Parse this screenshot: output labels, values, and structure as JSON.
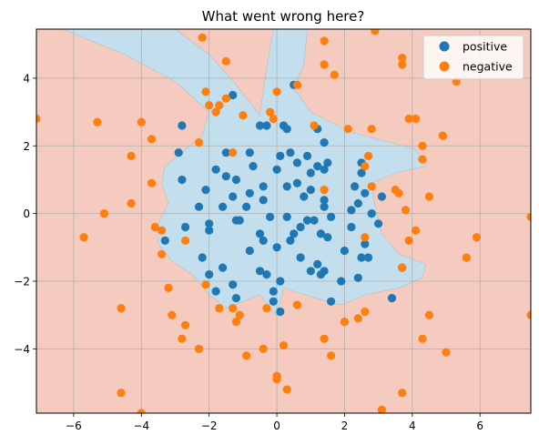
{
  "chart_data": {
    "type": "scatter",
    "title": "What went wrong here?",
    "xlabel": "",
    "ylabel": "",
    "xlim": [
      -7.1,
      7.5
    ],
    "ylim": [
      -5.9,
      5.45
    ],
    "xticks": [
      -6,
      -4,
      -2,
      0,
      2,
      4,
      6
    ],
    "yticks": [
      -4,
      -2,
      0,
      2,
      4
    ],
    "grid": true,
    "legend": {
      "placement": "top-right"
    },
    "background_regions": {
      "negative_region_color": "#f4cbbe",
      "positive_region_color": "#c3dfed",
      "positive_region_outline": [
        [
          -6.3,
          5.45
        ],
        [
          -3.0,
          5.45
        ],
        [
          -2.0,
          4.7
        ],
        [
          -1.2,
          3.8
        ],
        [
          -0.5,
          2.9
        ],
        [
          -0.3,
          4.3
        ],
        [
          -0.1,
          5.45
        ],
        [
          0.9,
          5.45
        ],
        [
          0.8,
          4.4
        ],
        [
          0.5,
          3.7
        ],
        [
          1.0,
          3.0
        ],
        [
          2.2,
          2.4
        ],
        [
          4.1,
          1.9
        ],
        [
          4.4,
          1.4
        ],
        [
          3.5,
          1.2
        ],
        [
          2.8,
          0.9
        ],
        [
          2.9,
          0.2
        ],
        [
          3.1,
          -0.6
        ],
        [
          3.6,
          -1.2
        ],
        [
          4.4,
          -1.5
        ],
        [
          4.3,
          -1.9
        ],
        [
          3.6,
          -2.2
        ],
        [
          2.6,
          -2.4
        ],
        [
          1.9,
          -2.7
        ],
        [
          1.5,
          -2.6
        ],
        [
          0.5,
          -2.3
        ],
        [
          0.2,
          -2.2
        ],
        [
          0.0,
          -3.0
        ],
        [
          -0.2,
          -2.8
        ],
        [
          -0.5,
          -2.4
        ],
        [
          -1.0,
          -2.6
        ],
        [
          -1.5,
          -2.8
        ],
        [
          -2.0,
          -2.4
        ],
        [
          -2.5,
          -1.8
        ],
        [
          -3.1,
          -1.4
        ],
        [
          -3.5,
          -0.9
        ],
        [
          -3.5,
          -0.3
        ],
        [
          -3.2,
          0.3
        ],
        [
          -3.4,
          0.9
        ],
        [
          -3.3,
          1.4
        ],
        [
          -2.8,
          1.8
        ],
        [
          -2.2,
          2.3
        ],
        [
          -2.0,
          3.0
        ],
        [
          -3.0,
          3.9
        ],
        [
          -4.5,
          4.7
        ]
      ]
    },
    "series": [
      {
        "name": "positive",
        "color": "#1f77b4",
        "points": [
          [
            -1.3,
            3.5
          ],
          [
            0.5,
            3.8
          ],
          [
            -2.8,
            2.6
          ],
          [
            -0.5,
            2.6
          ],
          [
            -0.3,
            2.6
          ],
          [
            0.2,
            2.6
          ],
          [
            0.3,
            2.5
          ],
          [
            1.2,
            2.5
          ],
          [
            1.4,
            2.1
          ],
          [
            -2.9,
            1.8
          ],
          [
            -1.5,
            1.8
          ],
          [
            -0.8,
            1.8
          ],
          [
            0.1,
            1.7
          ],
          [
            0.4,
            1.8
          ],
          [
            0.9,
            1.7
          ],
          [
            1.2,
            1.4
          ],
          [
            1.5,
            1.5
          ],
          [
            -1.8,
            1.3
          ],
          [
            -0.7,
            1.4
          ],
          [
            0.0,
            1.3
          ],
          [
            0.6,
            1.5
          ],
          [
            1.0,
            1.2
          ],
          [
            1.4,
            1.3
          ],
          [
            2.5,
            1.5
          ],
          [
            2.5,
            1.2
          ],
          [
            -2.8,
            1.0
          ],
          [
            -1.5,
            1.1
          ],
          [
            -1.2,
            1.0
          ],
          [
            -0.4,
            0.8
          ],
          [
            0.3,
            0.8
          ],
          [
            0.6,
            0.9
          ],
          [
            1.0,
            0.7
          ],
          [
            2.3,
            0.8
          ],
          [
            2.6,
            0.6
          ],
          [
            3.1,
            0.5
          ],
          [
            -2.1,
            0.7
          ],
          [
            -1.3,
            0.5
          ],
          [
            -0.8,
            0.6
          ],
          [
            0.8,
            0.5
          ],
          [
            1.4,
            0.4
          ],
          [
            -0.4,
            0.4
          ],
          [
            2.4,
            0.3
          ],
          [
            -2.3,
            0.2
          ],
          [
            -1.6,
            0.2
          ],
          [
            -0.9,
            0.2
          ],
          [
            1.4,
            0.2
          ],
          [
            2.2,
            0.1
          ],
          [
            2.8,
            0.0
          ],
          [
            -2.7,
            -0.4
          ],
          [
            -2.0,
            -0.3
          ],
          [
            -1.2,
            -0.2
          ],
          [
            -0.2,
            -0.1
          ],
          [
            0.3,
            -0.1
          ],
          [
            0.9,
            -0.2
          ],
          [
            1.1,
            -0.2
          ],
          [
            1.6,
            -0.1
          ],
          [
            3.0,
            -0.3
          ],
          [
            -1.1,
            -0.2
          ],
          [
            0.7,
            -0.4
          ],
          [
            1.3,
            -0.6
          ],
          [
            2.2,
            -0.4
          ],
          [
            -3.3,
            -0.8
          ],
          [
            -2.0,
            -0.5
          ],
          [
            -0.5,
            -0.6
          ],
          [
            0.5,
            -0.6
          ],
          [
            1.5,
            -0.7
          ],
          [
            0.4,
            -0.8
          ],
          [
            -0.4,
            -0.8
          ],
          [
            2.6,
            -0.9
          ],
          [
            -2.2,
            -1.3
          ],
          [
            -0.8,
            -1.1
          ],
          [
            0.0,
            -1.0
          ],
          [
            2.0,
            -1.1
          ],
          [
            2.5,
            -1.3
          ],
          [
            2.7,
            -1.3
          ],
          [
            0.7,
            -1.3
          ],
          [
            1.2,
            -1.5
          ],
          [
            3.7,
            -1.6
          ],
          [
            -1.6,
            -1.6
          ],
          [
            -2.0,
            -1.8
          ],
          [
            -0.5,
            -1.7
          ],
          [
            -0.3,
            -1.8
          ],
          [
            1.0,
            -1.7
          ],
          [
            1.3,
            -1.8
          ],
          [
            1.4,
            -1.7
          ],
          [
            2.4,
            -1.9
          ],
          [
            -1.3,
            -2.1
          ],
          [
            0.1,
            -2.0
          ],
          [
            1.9,
            -2.0
          ],
          [
            -1.8,
            -2.3
          ],
          [
            -0.1,
            -2.3
          ],
          [
            -1.2,
            -2.5
          ],
          [
            -0.1,
            -2.6
          ],
          [
            1.6,
            -2.6
          ],
          [
            3.4,
            -2.5
          ],
          [
            0.1,
            -2.9
          ]
        ]
      },
      {
        "name": "negative",
        "color": "#ff7f0e",
        "points": [
          [
            -2.2,
            5.2
          ],
          [
            1.4,
            5.1
          ],
          [
            2.9,
            5.4
          ],
          [
            -1.5,
            4.5
          ],
          [
            1.4,
            4.4
          ],
          [
            1.7,
            4.1
          ],
          [
            3.7,
            4.6
          ],
          [
            3.7,
            4.4
          ],
          [
            5.3,
            3.9
          ],
          [
            0.6,
            3.8
          ],
          [
            0.0,
            3.6
          ],
          [
            -2.1,
            3.6
          ],
          [
            -1.5,
            3.4
          ],
          [
            -2.0,
            3.2
          ],
          [
            -1.8,
            3.0
          ],
          [
            -1.7,
            3.2
          ],
          [
            -1.0,
            2.9
          ],
          [
            -0.2,
            3.0
          ],
          [
            -0.1,
            2.8
          ],
          [
            -7.1,
            2.8
          ],
          [
            -4.0,
            2.7
          ],
          [
            -5.3,
            2.7
          ],
          [
            3.9,
            2.8
          ],
          [
            4.1,
            2.8
          ],
          [
            2.1,
            2.5
          ],
          [
            2.8,
            2.5
          ],
          [
            1.1,
            2.6
          ],
          [
            -3.7,
            2.2
          ],
          [
            4.9,
            2.3
          ],
          [
            4.3,
            2.0
          ],
          [
            -2.3,
            2.1
          ],
          [
            -1.3,
            1.8
          ],
          [
            2.7,
            1.7
          ],
          [
            -4.3,
            1.7
          ],
          [
            4.3,
            1.6
          ],
          [
            2.6,
            1.4
          ],
          [
            -3.7,
            0.9
          ],
          [
            2.8,
            0.8
          ],
          [
            3.5,
            0.7
          ],
          [
            1.4,
            0.7
          ],
          [
            3.6,
            0.6
          ],
          [
            4.5,
            0.5
          ],
          [
            -4.3,
            0.3
          ],
          [
            3.8,
            0.1
          ],
          [
            -5.1,
            0.0
          ],
          [
            7.5,
            -0.1
          ],
          [
            -3.6,
            -0.4
          ],
          [
            -3.4,
            -0.5
          ],
          [
            4.1,
            -0.5
          ],
          [
            -5.7,
            -0.7
          ],
          [
            5.9,
            -0.7
          ],
          [
            2.6,
            -0.7
          ],
          [
            -2.7,
            -0.8
          ],
          [
            3.9,
            -0.8
          ],
          [
            -3.4,
            -1.2
          ],
          [
            5.6,
            -1.3
          ],
          [
            3.7,
            -1.6
          ],
          [
            -2.1,
            -2.1
          ],
          [
            -3.2,
            -2.2
          ],
          [
            0.6,
            -2.7
          ],
          [
            -1.3,
            -2.8
          ],
          [
            -0.3,
            -2.8
          ],
          [
            -1.7,
            -2.8
          ],
          [
            -1.1,
            -3.0
          ],
          [
            2.6,
            -2.9
          ],
          [
            4.5,
            -3.0
          ],
          [
            -4.6,
            -2.8
          ],
          [
            -3.1,
            -3.0
          ],
          [
            2.0,
            -3.2
          ],
          [
            2.4,
            -3.1
          ],
          [
            7.5,
            -3.0
          ],
          [
            -2.7,
            -3.3
          ],
          [
            -1.2,
            -3.2
          ],
          [
            1.4,
            -3.7
          ],
          [
            -2.8,
            -3.7
          ],
          [
            4.3,
            -3.7
          ],
          [
            -2.3,
            -4.0
          ],
          [
            -0.4,
            -4.0
          ],
          [
            0.2,
            -3.9
          ],
          [
            5.0,
            -4.1
          ],
          [
            -0.9,
            -4.2
          ],
          [
            1.6,
            -4.2
          ],
          [
            0.0,
            -4.8
          ],
          [
            0.0,
            -4.9
          ],
          [
            3.7,
            -5.3
          ],
          [
            -4.6,
            -5.3
          ],
          [
            0.3,
            -5.2
          ],
          [
            3.1,
            -5.8
          ],
          [
            -4.0,
            -5.9
          ]
        ]
      }
    ]
  }
}
